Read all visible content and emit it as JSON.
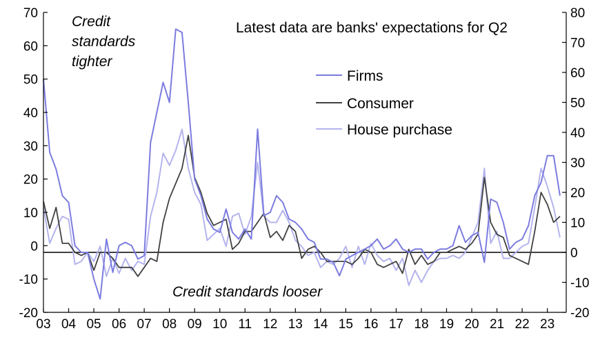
{
  "chart_data": {
    "type": "line",
    "title": "",
    "xlabel": "",
    "ylabel": "",
    "x_tick_labels": [
      "03",
      "04",
      "05",
      "06",
      "07",
      "08",
      "09",
      "10",
      "11",
      "12",
      "13",
      "14",
      "15",
      "16",
      "17",
      "18",
      "19",
      "20",
      "21",
      "22",
      "23"
    ],
    "x_range": [
      2003,
      2023.75
    ],
    "left_axis": {
      "range": [
        -20,
        70
      ],
      "ticks": [
        -20,
        -10,
        0,
        10,
        20,
        30,
        40,
        50,
        60,
        70
      ]
    },
    "right_axis": {
      "range": [
        -20,
        80
      ],
      "ticks": [
        -20,
        -10,
        0,
        10,
        20,
        30,
        40,
        50,
        60,
        70,
        80
      ]
    },
    "zero_line": {
      "axis": "right",
      "value": 0
    },
    "grid": false,
    "legend_position": "top-center",
    "annotations": {
      "top_left": "Credit standards tighter",
      "top_left_lines": [
        "Credit",
        "standards",
        "tighter"
      ],
      "bottom": "Credit standards looser",
      "top_right": "Latest data are banks' expectations for Q2"
    },
    "colors": {
      "firms": "#7b7be0",
      "consumer": "#404040",
      "house_purchase": "#b4b4ee",
      "axis": "#000000"
    },
    "series": [
      {
        "name": "Firms",
        "axis": "left",
        "x": [
          2003.0,
          2003.25,
          2003.5,
          2003.75,
          2004.0,
          2004.25,
          2004.5,
          2004.75,
          2005.0,
          2005.25,
          2005.5,
          2005.75,
          2006.0,
          2006.25,
          2006.5,
          2006.75,
          2007.0,
          2007.25,
          2007.5,
          2007.75,
          2008.0,
          2008.25,
          2008.5,
          2008.75,
          2009.0,
          2009.25,
          2009.5,
          2009.75,
          2010.0,
          2010.25,
          2010.5,
          2010.75,
          2011.0,
          2011.25,
          2011.5,
          2011.75,
          2012.0,
          2012.25,
          2012.5,
          2012.75,
          2013.0,
          2013.25,
          2013.5,
          2013.75,
          2014.0,
          2014.25,
          2014.5,
          2014.75,
          2015.0,
          2015.25,
          2015.5,
          2015.75,
          2016.0,
          2016.25,
          2016.5,
          2016.75,
          2017.0,
          2017.25,
          2017.5,
          2017.75,
          2018.0,
          2018.25,
          2018.5,
          2018.75,
          2019.0,
          2019.25,
          2019.5,
          2019.75,
          2020.0,
          2020.25,
          2020.5,
          2020.75,
          2021.0,
          2021.25,
          2021.5,
          2021.75,
          2022.0,
          2022.25,
          2022.5,
          2022.75,
          2023.0,
          2023.25,
          2023.5
        ],
        "values": [
          50,
          28,
          23,
          15,
          13,
          0,
          -2,
          -2,
          -10,
          -16,
          2,
          -8,
          0,
          1,
          0,
          -4,
          -3,
          31,
          40,
          49,
          43,
          65,
          64,
          43,
          20,
          15,
          8,
          5,
          4,
          11,
          4,
          2,
          5,
          2,
          35,
          9,
          10,
          15,
          13,
          8,
          7,
          5,
          2,
          1,
          -4,
          -4,
          -5,
          -9,
          -4,
          -3,
          -2,
          -1,
          0,
          2,
          -1,
          0,
          2,
          -1,
          -2,
          -1,
          -1,
          -4,
          -2,
          -1,
          -1,
          0,
          6,
          1,
          3,
          4,
          -5,
          14,
          13,
          7,
          -1,
          1,
          2,
          6,
          15,
          19,
          27,
          27,
          15
        ]
      },
      {
        "name": "Consumer",
        "axis": "right",
        "x": [
          2003.0,
          2003.25,
          2003.5,
          2003.75,
          2004.0,
          2004.25,
          2004.5,
          2004.75,
          2005.0,
          2005.25,
          2005.5,
          2005.75,
          2006.0,
          2006.25,
          2006.5,
          2006.75,
          2007.0,
          2007.25,
          2007.5,
          2007.75,
          2008.0,
          2008.25,
          2008.5,
          2008.75,
          2009.0,
          2009.25,
          2009.5,
          2009.75,
          2010.0,
          2010.25,
          2010.5,
          2010.75,
          2011.0,
          2011.25,
          2011.5,
          2011.75,
          2012.0,
          2012.25,
          2012.5,
          2012.75,
          2013.0,
          2013.25,
          2013.5,
          2013.75,
          2014.0,
          2014.25,
          2014.5,
          2014.75,
          2015.0,
          2015.25,
          2015.5,
          2015.75,
          2016.0,
          2016.25,
          2016.5,
          2016.75,
          2017.0,
          2017.25,
          2017.5,
          2017.75,
          2018.0,
          2018.25,
          2018.5,
          2018.75,
          2019.0,
          2019.25,
          2019.5,
          2019.75,
          2020.0,
          2020.25,
          2020.5,
          2020.75,
          2021.0,
          2021.25,
          2021.5,
          2021.75,
          2022.0,
          2022.25,
          2022.5,
          2022.75,
          2023.0,
          2023.25,
          2023.5
        ],
        "values": [
          17,
          8,
          15,
          3,
          3,
          0,
          -1,
          0,
          -6,
          0,
          0,
          -2,
          -5,
          -5,
          -5,
          -8,
          -5,
          -2,
          -3,
          10,
          18,
          23,
          28,
          39,
          25,
          20,
          13,
          9,
          10,
          11,
          1,
          3,
          7,
          7,
          10,
          13,
          5,
          7,
          4,
          9,
          7,
          -2,
          1,
          2,
          0,
          -3,
          -3,
          -3,
          -3,
          -4,
          -2,
          1,
          0,
          -4,
          -5,
          -4,
          -3,
          -7,
          1,
          -4,
          -1,
          -4,
          -3,
          0,
          0,
          1,
          2,
          1,
          3,
          6,
          25,
          10,
          6,
          5,
          -1,
          -2,
          -3,
          -4,
          7,
          20,
          16,
          10,
          12
        ]
      },
      {
        "name": "House purchase",
        "axis": "right",
        "x": [
          2003.0,
          2003.25,
          2003.5,
          2003.75,
          2004.0,
          2004.25,
          2004.5,
          2004.75,
          2005.0,
          2005.25,
          2005.5,
          2005.75,
          2006.0,
          2006.25,
          2006.5,
          2006.75,
          2007.0,
          2007.25,
          2007.5,
          2007.75,
          2008.0,
          2008.25,
          2008.5,
          2008.75,
          2009.0,
          2009.25,
          2009.5,
          2009.75,
          2010.0,
          2010.25,
          2010.5,
          2010.75,
          2011.0,
          2011.25,
          2011.5,
          2011.75,
          2012.0,
          2012.25,
          2012.5,
          2012.75,
          2013.0,
          2013.25,
          2013.5,
          2013.75,
          2014.0,
          2014.25,
          2014.5,
          2014.75,
          2015.0,
          2015.25,
          2015.5,
          2015.75,
          2016.0,
          2016.25,
          2016.5,
          2016.75,
          2017.0,
          2017.25,
          2017.5,
          2017.75,
          2018.0,
          2018.25,
          2018.5,
          2018.75,
          2019.0,
          2019.25,
          2019.5,
          2019.75,
          2020.0,
          2020.25,
          2020.5,
          2020.75,
          2021.0,
          2021.25,
          2021.5,
          2021.75,
          2022.0,
          2022.25,
          2022.5,
          2022.75,
          2023.0,
          2023.25,
          2023.5
        ],
        "values": [
          15,
          3,
          8,
          12,
          11,
          -4,
          -3,
          0,
          -3,
          2,
          -8,
          -2,
          -7,
          -2,
          -6,
          -3,
          -4,
          12,
          20,
          33,
          29,
          34,
          41,
          28,
          20,
          16,
          4,
          6,
          8,
          2,
          12,
          13,
          6,
          12,
          30,
          12,
          10,
          10,
          14,
          10,
          4,
          2,
          -1,
          0,
          -5,
          -3,
          -4,
          -2,
          2,
          -5,
          2,
          -4,
          3,
          -1,
          -3,
          -2,
          -6,
          -2,
          -11,
          -6,
          -10,
          -6,
          -3,
          -2,
          -2,
          -1,
          -2,
          0,
          5,
          10,
          28,
          3,
          7,
          -2,
          -2,
          0,
          2,
          3,
          15,
          28,
          22,
          15,
          5
        ]
      }
    ]
  }
}
